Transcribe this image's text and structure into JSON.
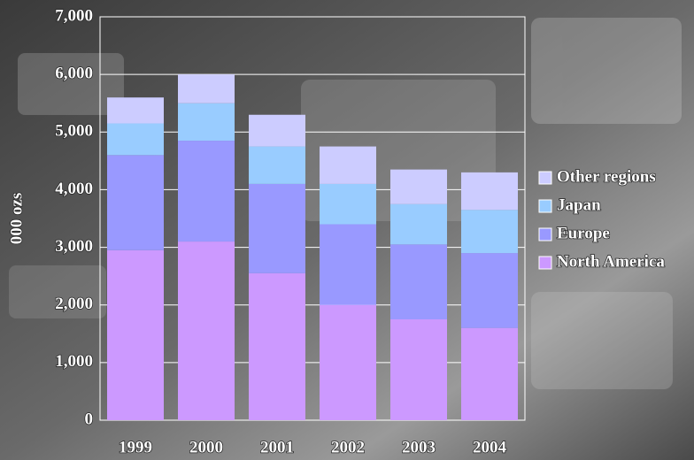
{
  "chart_data": {
    "type": "stacked-bar",
    "y_label": "000 ozs",
    "categories": [
      "1999",
      "2000",
      "2001",
      "2002",
      "2003",
      "2004"
    ],
    "series": [
      {
        "name": "North America",
        "color": "#cc99ff",
        "values": [
          2950,
          3100,
          2550,
          2000,
          1750,
          1600
        ]
      },
      {
        "name": "Europe",
        "color": "#9999ff",
        "values": [
          1650,
          1750,
          1550,
          1400,
          1300,
          1300
        ]
      },
      {
        "name": "Japan",
        "color": "#99ccff",
        "values": [
          550,
          650,
          650,
          700,
          700,
          750
        ]
      },
      {
        "name": "Other regions",
        "color": "#ccccff",
        "values": [
          450,
          500,
          550,
          650,
          600,
          650
        ]
      }
    ],
    "ylim": [
      0,
      7000
    ],
    "yticks": [
      0,
      {
        "value": 1000,
        "label": "1,000"
      },
      {
        "value": 2000,
        "label": "2,000"
      },
      {
        "value": 3000,
        "label": "3,000"
      },
      {
        "value": 4000,
        "label": "4,000"
      },
      {
        "value": 5000,
        "label": "5,000"
      },
      {
        "value": 6000,
        "label": "6,000"
      },
      {
        "value": 7000,
        "label": "7,000"
      }
    ],
    "grid": true,
    "legend": "right"
  }
}
